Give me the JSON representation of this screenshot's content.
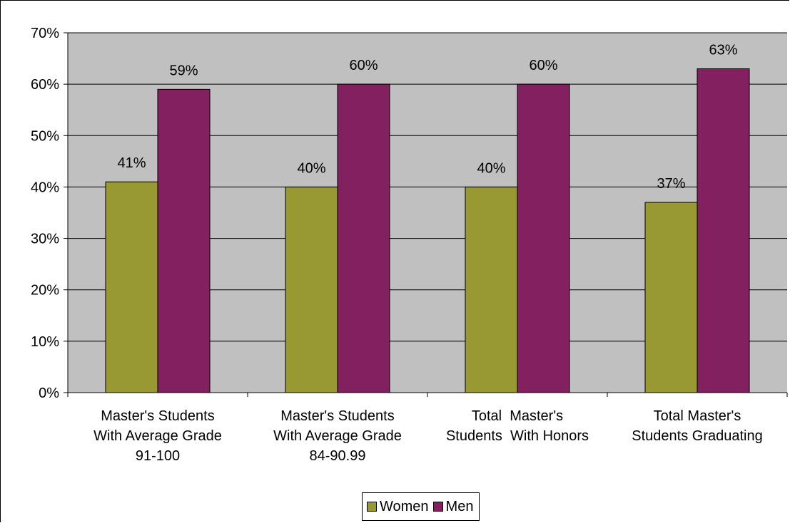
{
  "chart_data": {
    "type": "bar",
    "categories": [
      [
        "Master's Students",
        "With Average Grade",
        "91-100"
      ],
      [
        "Master's Students",
        "With Average Grade",
        "84-90.99"
      ],
      [
        "Total  Master's",
        "Students  With Honors"
      ],
      [
        "Total Master's",
        "Students Graduating"
      ]
    ],
    "series": [
      {
        "name": "Women",
        "color": "#999933",
        "values": [
          41,
          40,
          40,
          37
        ],
        "labels": [
          "41%",
          "40%",
          "40%",
          "37%"
        ]
      },
      {
        "name": "Men",
        "color": "#822060",
        "values": [
          59,
          60,
          60,
          63
        ],
        "labels": [
          "59%",
          "60%",
          "60%",
          "63%"
        ]
      }
    ],
    "ylim": [
      0,
      70
    ],
    "yticks": [
      "0%",
      "10%",
      "20%",
      "30%",
      "40%",
      "50%",
      "60%",
      "70%"
    ],
    "grid": true,
    "plot_background": "#c0c0c0",
    "legend_position": "bottom",
    "title": "",
    "xlabel": "",
    "ylabel": ""
  }
}
